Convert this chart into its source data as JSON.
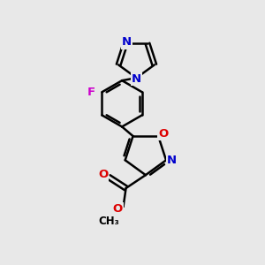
{
  "background_color": "#e8e8e8",
  "bond_color": "#000000",
  "atom_colors": {
    "N": "#0000cc",
    "O": "#dd0000",
    "F": "#cc00cc",
    "C": "#000000"
  },
  "figsize": [
    3.0,
    3.0
  ],
  "dpi": 100
}
